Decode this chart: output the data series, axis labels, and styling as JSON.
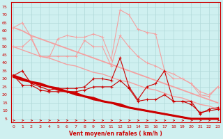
{
  "x": [
    0,
    1,
    2,
    3,
    4,
    5,
    6,
    7,
    8,
    9,
    10,
    11,
    12,
    13,
    14,
    15,
    16,
    17,
    18,
    19,
    20,
    21,
    22,
    23
  ],
  "line_rafales_y": [
    62,
    65,
    56,
    44,
    43,
    55,
    57,
    56,
    56,
    58,
    56,
    42,
    73,
    70,
    61,
    59,
    58,
    35,
    30,
    30,
    27,
    20,
    19,
    25
  ],
  "line_rafales2_y": [
    50,
    50,
    55,
    44,
    44,
    44,
    44,
    44,
    54,
    50,
    50,
    38,
    57,
    50,
    44,
    40,
    38,
    35,
    33,
    30,
    27,
    22,
    20,
    25
  ],
  "line_trend_hi1": [
    62,
    60,
    57,
    55,
    53,
    51,
    49,
    47,
    45,
    43,
    41,
    39,
    37,
    35,
    33,
    31,
    29,
    27,
    25,
    23,
    21,
    19,
    17,
    15
  ],
  "line_trend_hi2": [
    50,
    48,
    46,
    44,
    43,
    41,
    39,
    38,
    36,
    34,
    33,
    31,
    29,
    28,
    26,
    24,
    23,
    21,
    19,
    18,
    16,
    14,
    13,
    11
  ],
  "line_moyen_y": [
    32,
    35,
    27,
    25,
    23,
    24,
    24,
    24,
    25,
    30,
    30,
    29,
    43,
    25,
    17,
    25,
    27,
    35,
    16,
    16,
    16,
    8,
    11,
    12
  ],
  "line_moyen2_y": [
    32,
    26,
    26,
    23,
    22,
    22,
    22,
    22,
    23,
    25,
    25,
    25,
    29,
    24,
    16,
    17,
    17,
    20,
    16,
    16,
    14,
    9,
    10,
    11
  ],
  "line_trend_lo1": [
    32,
    30,
    28,
    27,
    25,
    24,
    22,
    21,
    19,
    18,
    16,
    15,
    14,
    12,
    11,
    10,
    9,
    8,
    7,
    6,
    5,
    5,
    5,
    5
  ],
  "line_trend_lo2": [
    31,
    29,
    28,
    26,
    25,
    23,
    22,
    20,
    19,
    17,
    16,
    15,
    13,
    12,
    11,
    10,
    9,
    8,
    7,
    6,
    5,
    5,
    5,
    5
  ],
  "color_light": "#f4a0a0",
  "color_dark": "#cc0000",
  "bg_color": "#cff0f0",
  "grid_color": "#b0d8d8",
  "xlabel": "Vent moyen/en rafales ( km/h )",
  "yticks": [
    5,
    10,
    15,
    20,
    25,
    30,
    35,
    40,
    45,
    50,
    55,
    60,
    65,
    70,
    75
  ],
  "xticks": [
    0,
    1,
    2,
    3,
    4,
    5,
    6,
    7,
    8,
    9,
    10,
    11,
    12,
    13,
    14,
    15,
    16,
    17,
    18,
    19,
    20,
    21,
    22,
    23
  ],
  "ylim": [
    3,
    78
  ],
  "xlim": [
    -0.3,
    23.3
  ]
}
